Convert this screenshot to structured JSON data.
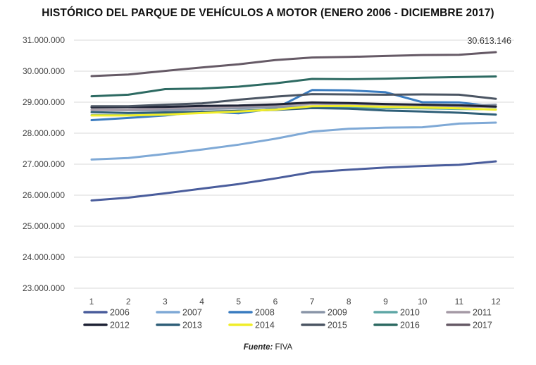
{
  "chart_data": {
    "type": "line",
    "title": "HISTÓRICO DEL PARQUE DE VEHÍCULOS A MOTOR (ENERO 2006 - DICIEMBRE 2017)",
    "xlabel": "",
    "ylabel": "",
    "categories": [
      "1",
      "2",
      "3",
      "4",
      "5",
      "6",
      "7",
      "8",
      "9",
      "10",
      "11",
      "12"
    ],
    "ylim": [
      23000000,
      31000000
    ],
    "y_ticks": [
      {
        "value": 23000000,
        "label": "23.000.000"
      },
      {
        "value": 24000000,
        "label": "24.000.000"
      },
      {
        "value": 25000000,
        "label": "25.000.000"
      },
      {
        "value": 26000000,
        "label": "26.000.000"
      },
      {
        "value": 27000000,
        "label": "27.000.000"
      },
      {
        "value": 28000000,
        "label": "28.000.000"
      },
      {
        "value": 29000000,
        "label": "29.000.000"
      },
      {
        "value": 30000000,
        "label": "30.000.000"
      },
      {
        "value": 31000000,
        "label": "31.000.000"
      }
    ],
    "grid": true,
    "legend_position": "bottom",
    "series": [
      {
        "name": "2006",
        "color": "#4a5d9c",
        "values": [
          25830000,
          25920000,
          26060000,
          26210000,
          26360000,
          26540000,
          26740000,
          26820000,
          26890000,
          26940000,
          26980000,
          27090000
        ]
      },
      {
        "name": "2007",
        "color": "#7fa9d6",
        "values": [
          27150000,
          27200000,
          27330000,
          27470000,
          27630000,
          27820000,
          28050000,
          28140000,
          28180000,
          28190000,
          28310000,
          28340000
        ]
      },
      {
        "name": "2008",
        "color": "#3a7cc0",
        "values": [
          28420000,
          28490000,
          28570000,
          28700000,
          28640000,
          28800000,
          29390000,
          29380000,
          29320000,
          29000000,
          28990000,
          28860000
        ]
      },
      {
        "name": "2009",
        "color": "#8a95a8",
        "values": [
          28750000,
          28740000,
          28740000,
          28780000,
          28800000,
          28840000,
          28870000,
          28870000,
          28860000,
          28890000,
          28880000,
          28920000
        ]
      },
      {
        "name": "2010",
        "color": "#5fa7a6",
        "values": [
          28580000,
          28580000,
          28610000,
          28660000,
          28720000,
          28760000,
          28830000,
          28840000,
          28810000,
          28800000,
          28780000,
          28770000
        ]
      },
      {
        "name": "2011",
        "color": "#a59aa6",
        "values": [
          28750000,
          28760000,
          28800000,
          28830000,
          28860000,
          28900000,
          28950000,
          28930000,
          28890000,
          28880000,
          28860000,
          28850000
        ]
      },
      {
        "name": "2012",
        "color": "#1e2235",
        "values": [
          28830000,
          28840000,
          28850000,
          28880000,
          28890000,
          28930000,
          28990000,
          28970000,
          28940000,
          28920000,
          28900000,
          28860000
        ]
      },
      {
        "name": "2013",
        "color": "#2f5f78",
        "values": [
          28680000,
          28650000,
          28670000,
          28690000,
          28720000,
          28750000,
          28810000,
          28790000,
          28730000,
          28700000,
          28660000,
          28600000
        ]
      },
      {
        "name": "2014",
        "color": "#f0ed2a",
        "values": [
          28570000,
          28570000,
          28600000,
          28650000,
          28700000,
          28760000,
          28870000,
          28880000,
          28850000,
          28830000,
          28800000,
          28760000
        ]
      },
      {
        "name": "2015",
        "color": "#4b5563",
        "values": [
          28870000,
          28870000,
          28920000,
          28960000,
          29080000,
          29180000,
          29260000,
          29250000,
          29240000,
          29250000,
          29240000,
          29110000
        ]
      },
      {
        "name": "2016",
        "color": "#2d6a62",
        "values": [
          29190000,
          29240000,
          29420000,
          29440000,
          29500000,
          29610000,
          29750000,
          29740000,
          29760000,
          29790000,
          29810000,
          29830000
        ]
      },
      {
        "name": "2017",
        "color": "#665a66",
        "values": [
          29840000,
          29890000,
          30010000,
          30120000,
          30220000,
          30360000,
          30440000,
          30460000,
          30490000,
          30520000,
          30530000,
          30613146
        ]
      }
    ],
    "annotations": [
      {
        "series": "2017",
        "point": "12",
        "text": "30.613.146"
      }
    ],
    "source_label": "Fuente:",
    "source_text": "FIVA"
  }
}
